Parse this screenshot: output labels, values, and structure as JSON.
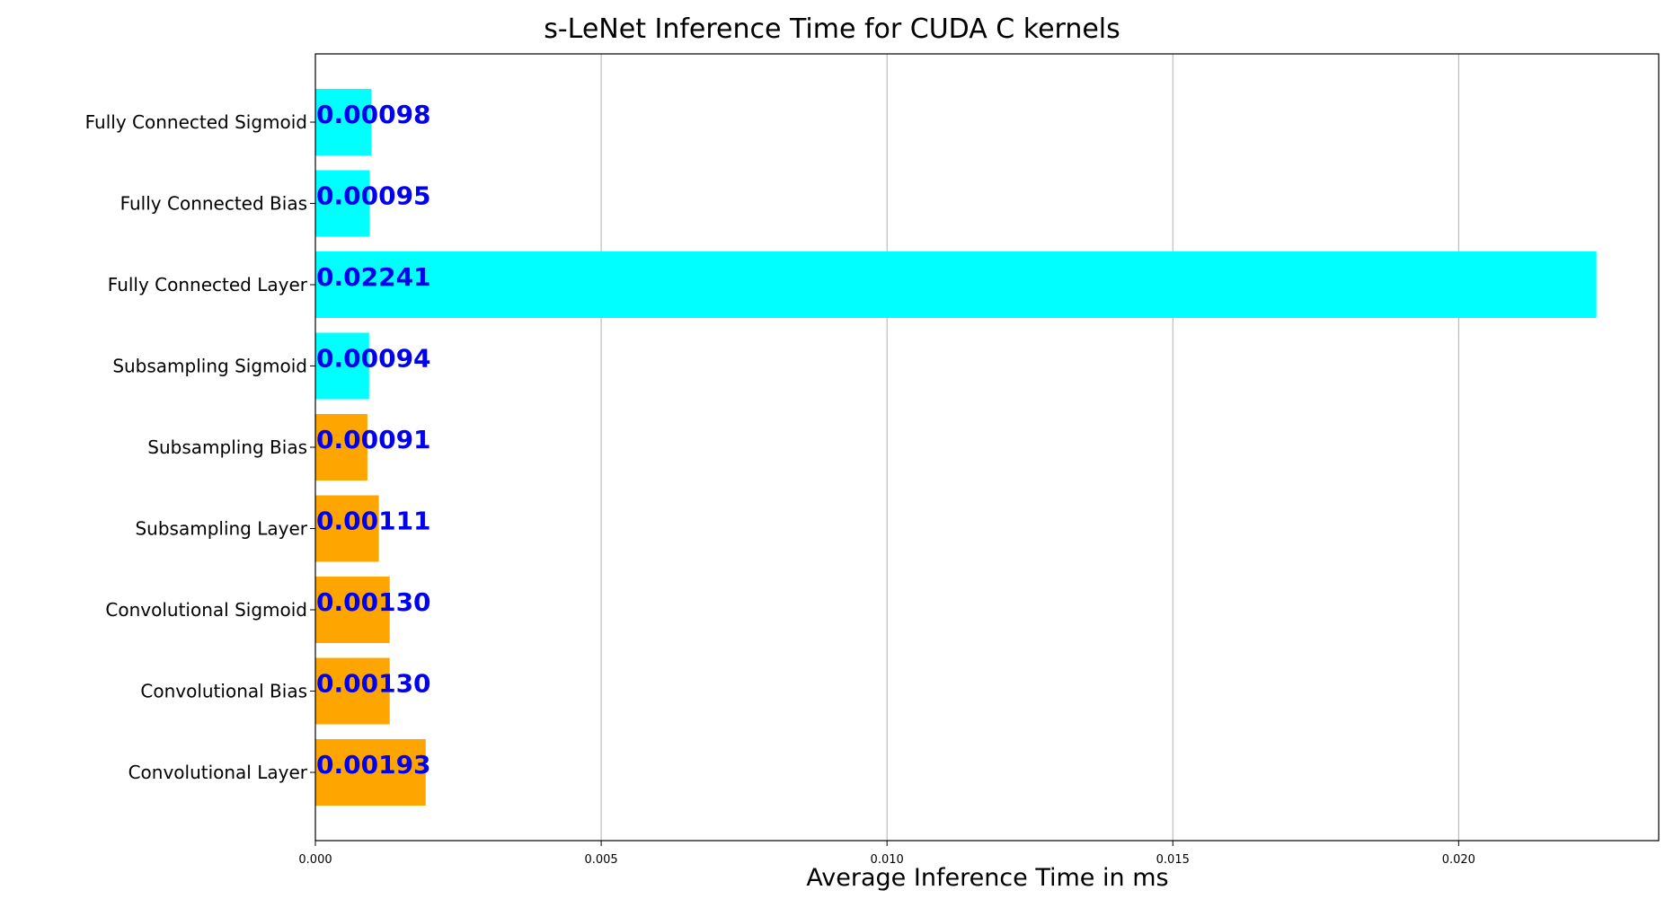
{
  "chart_data": {
    "type": "bar",
    "orientation": "horizontal",
    "title": "s-LeNet Inference Time for CUDA C kernels",
    "xlabel": "Average Inference Time in ms",
    "ylabel": "",
    "xlim": [
      0,
      0.0235
    ],
    "xticks": [
      0.0,
      0.005,
      0.01,
      0.015,
      0.02
    ],
    "xtick_labels": [
      "0.000",
      "0.005",
      "0.010",
      "0.015",
      "0.020"
    ],
    "grid": "x-axis only",
    "categories": [
      "Convolutional Layer",
      "Convolutional Bias",
      "Convolutional Sigmoid",
      "Subsampling Layer",
      "Subsampling Bias",
      "Subsampling Sigmoid",
      "Fully Connected Layer",
      "Fully Connected Bias",
      "Fully Connected Sigmoid"
    ],
    "values": [
      0.00193,
      0.0013,
      0.0013,
      0.00111,
      0.00091,
      0.00094,
      0.02241,
      0.00095,
      0.00098
    ],
    "value_labels": [
      "0.00193",
      "0.00130",
      "0.00130",
      "0.00111",
      "0.00091",
      "0.00094",
      "0.02241",
      "0.00095",
      "0.00098"
    ],
    "bar_colors": [
      "#ffa500",
      "#ffa500",
      "#ffa500",
      "#ffa500",
      "#ffa500",
      "#00ffff",
      "#00ffff",
      "#00ffff",
      "#00ffff"
    ],
    "value_label_color": "#0000ee"
  }
}
